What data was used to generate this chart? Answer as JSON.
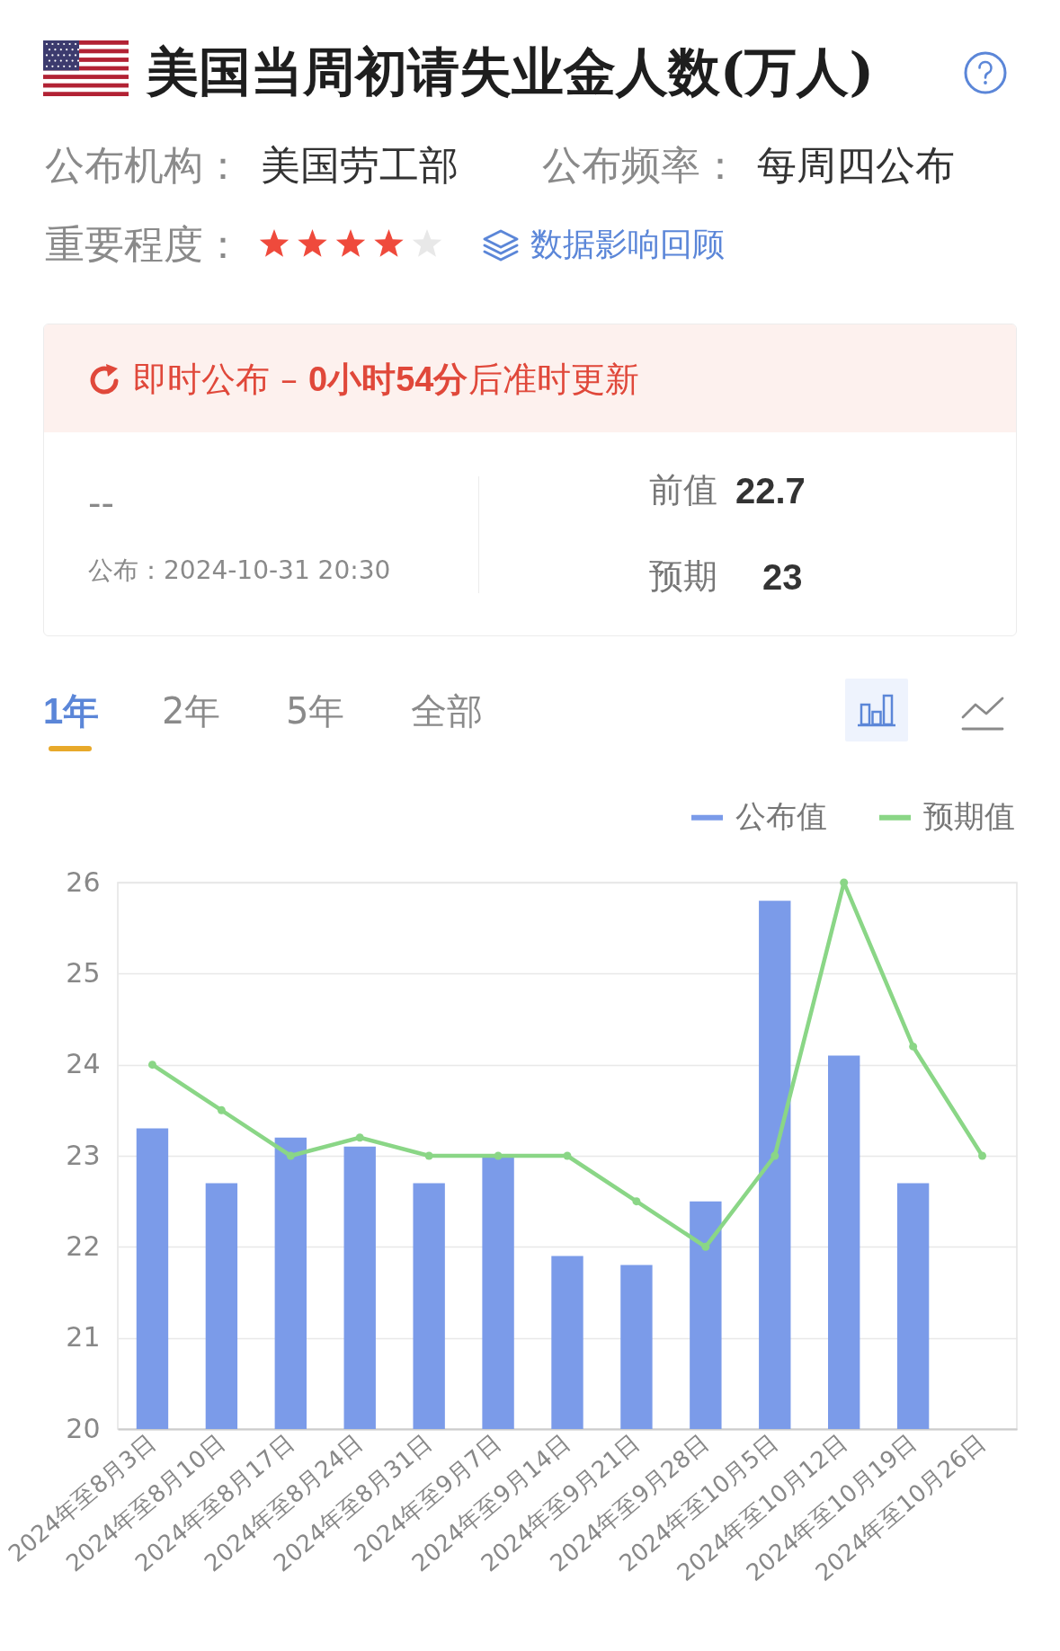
{
  "chart_data": {
    "type": "bar",
    "title": "美国当周初请失业金人数(万人)",
    "categories": [
      "2024年至8月3日",
      "2024年至8月10日",
      "2024年至8月17日",
      "2024年至8月24日",
      "2024年至8月31日",
      "2024年至9月7日",
      "2024年至9月14日",
      "2024年至9月21日",
      "2024年至9月28日",
      "2024年至10月5日",
      "2024年至10月12日",
      "2024年至10月19日",
      "2024年至10月26日"
    ],
    "series": [
      {
        "name": "公布值",
        "color": "#7b9be9",
        "values": [
          23.3,
          22.7,
          23.2,
          23.1,
          22.7,
          23.0,
          21.9,
          21.8,
          22.5,
          25.8,
          24.1,
          22.7,
          null
        ]
      },
      {
        "name": "预期值",
        "type": "line",
        "color": "#8ad686",
        "values": [
          24,
          23.5,
          23,
          23.2,
          23,
          23,
          23,
          22.5,
          22,
          23,
          26,
          24.2,
          23
        ]
      }
    ],
    "ylim": [
      20,
      26
    ],
    "yticks": [
      20,
      21,
      22,
      23,
      24,
      25,
      26
    ],
    "grid": "y",
    "legend": "top right",
    "marker": "circle",
    "line_style": "solid",
    "annotations": [
      "公布机构：",
      "美国劳工部",
      "公布频率：",
      "每周四公布",
      "重要程度：",
      "数据影响回顾",
      "即时公布 –",
      "0小时54分",
      "后准时更新",
      "--",
      "公布：2024-10-31 20:30",
      "前值",
      "22.7",
      "预期",
      "23",
      "1年",
      "2年",
      "5年",
      "全部"
    ]
  }
}
